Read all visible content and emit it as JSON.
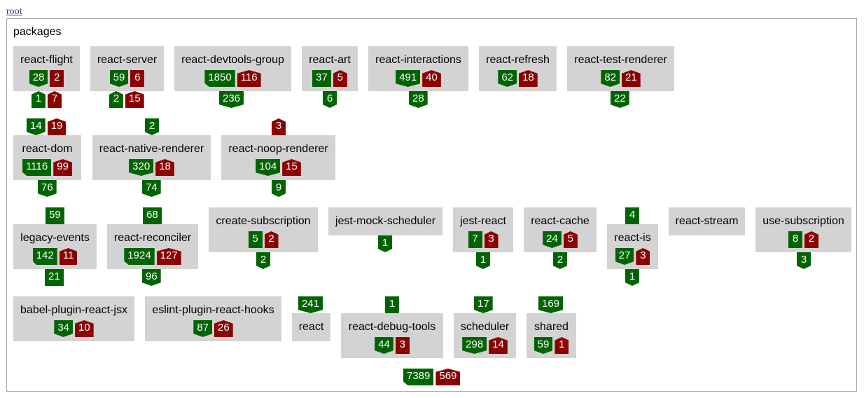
{
  "root_link": "root",
  "group_title": "packages",
  "colors": {
    "node": "#d3d3d3",
    "green": "#006400",
    "red": "#8b0000",
    "border": "#a9a9a9"
  },
  "nodes": [
    {
      "label": "react-flight",
      "green": "28",
      "red": "2",
      "below_green": "1",
      "below_red": "7"
    },
    {
      "label": "react-server",
      "green": "59",
      "red": "6",
      "below_green": "2",
      "below_red": "15"
    },
    {
      "label": "react-devtools-group",
      "green": "1850",
      "red": "116",
      "below_green": "236"
    },
    {
      "label": "react-art",
      "green": "37",
      "red": "5",
      "below_green": "6"
    },
    {
      "label": "react-interactions",
      "green": "491",
      "red": "40",
      "below_green": "28"
    },
    {
      "label": "react-refresh",
      "green": "62",
      "red": "18"
    },
    {
      "label": "react-test-renderer",
      "green": "82",
      "red": "21",
      "below_green": "22"
    },
    {
      "label": "react-dom",
      "green": "1116",
      "red": "99",
      "above_green": "14",
      "above_red": "19",
      "below_green": "76"
    },
    {
      "label": "react-native-renderer",
      "green": "320",
      "red": "18",
      "above_green": "2",
      "below_green": "74"
    },
    {
      "label": "react-noop-renderer",
      "green": "104",
      "red": "15",
      "above_red": "3",
      "below_green": "9"
    },
    {
      "label": "legacy-events",
      "green": "142",
      "red": "11",
      "above_green": "59",
      "below_green": "21"
    },
    {
      "label": "react-reconciler",
      "green": "1924",
      "red": "127",
      "above_green": "68",
      "below_green": "96"
    },
    {
      "label": "create-subscription",
      "green": "5",
      "red": "2",
      "below_green": "2"
    },
    {
      "label": "jest-mock-scheduler",
      "inside_green": "1"
    },
    {
      "label": "jest-react",
      "green": "7",
      "red": "3",
      "below_green": "1"
    },
    {
      "label": "react-cache",
      "green": "24",
      "red": "5",
      "below_green": "2"
    },
    {
      "label": "react-is",
      "green": "27",
      "red": "3",
      "above_green": "4",
      "below_green": "1"
    },
    {
      "label": "react-stream"
    },
    {
      "label": "use-subscription",
      "green": "8",
      "red": "2",
      "below_green": "3"
    },
    {
      "label": "babel-plugin-react-jsx",
      "green": "34",
      "red": "10"
    },
    {
      "label": "eslint-plugin-react-hooks",
      "green": "87",
      "red": "26"
    },
    {
      "label": "react",
      "above_green": "241"
    },
    {
      "label": "react-debug-tools",
      "green": "44",
      "red": "3",
      "above_green": "1"
    },
    {
      "label": "scheduler",
      "green": "298",
      "red": "14",
      "above_green": "17"
    },
    {
      "label": "shared",
      "green": "59",
      "red": "1",
      "above_green": "169"
    }
  ],
  "totals": {
    "green": "7389",
    "red": "569"
  }
}
